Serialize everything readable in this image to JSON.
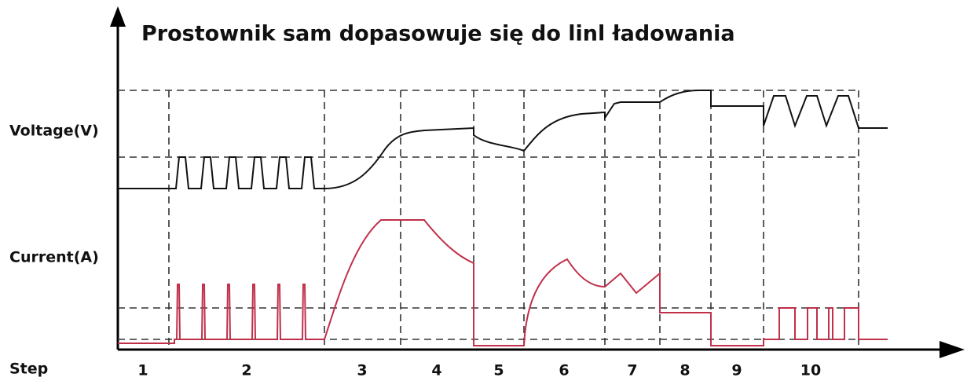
{
  "title": "Prostownik sam dopasowuje się do linl ładowania",
  "labels": {
    "voltage": "Voltage(V)",
    "current": "Current(A)",
    "step": "Step"
  },
  "steps": [
    "1",
    "2",
    "3",
    "4",
    "5",
    "6",
    "7",
    "8",
    "9",
    "10"
  ]
}
